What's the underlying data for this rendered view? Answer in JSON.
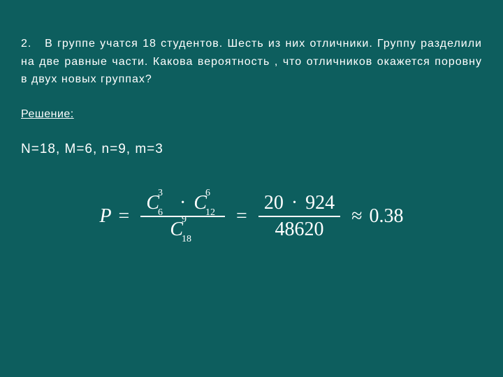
{
  "background_color": "#0d5e5e",
  "text_color": "#ffffff",
  "body_fontsize": 16,
  "formula_fontsize": 28,
  "problem": {
    "number": "2.",
    "text": "В группе учатся 18 студентов. Шесть из них отличники. Группу разделили на две равные части. Какова вероятность , что отличников окажется поровну в двух новых группах?"
  },
  "solution_label": "Решение:",
  "params": {
    "N": 18,
    "M": 6,
    "n": 9,
    "m": 3,
    "display": "N=18,  M=6,  n=9,  m=3"
  },
  "formula": {
    "lhs": "P",
    "comb1": {
      "base": "C",
      "sup": "3",
      "sub": "6"
    },
    "comb2": {
      "base": "C",
      "sup": "6",
      "sub": "12"
    },
    "comb3": {
      "base": "C",
      "sup": "9",
      "sub": "18"
    },
    "mult_dot": "·",
    "middle_num_a": "20",
    "middle_num_b": "924",
    "middle_den": "48620",
    "result": "0.38",
    "eq": "=",
    "approx": "≈"
  }
}
